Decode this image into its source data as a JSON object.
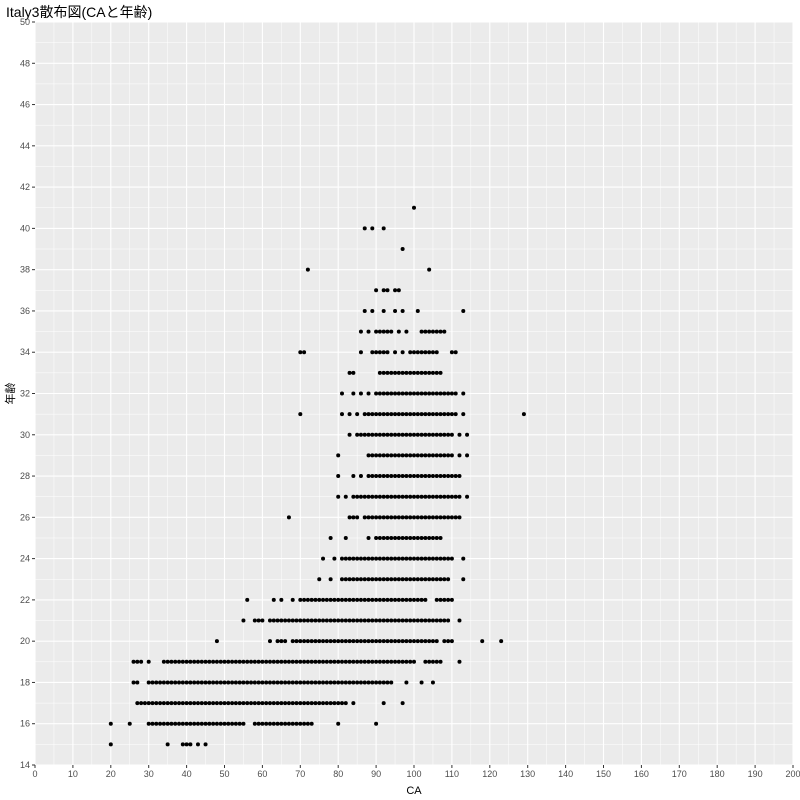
{
  "chart_data": {
    "type": "scatter",
    "title": "Italy3散布図(CAと年齢)",
    "xlabel": "CA",
    "ylabel": "年齢",
    "xlim": [
      0,
      200
    ],
    "ylim": [
      14,
      50
    ],
    "x_ticks": [
      0,
      10,
      20,
      30,
      40,
      50,
      60,
      70,
      80,
      90,
      100,
      110,
      120,
      130,
      140,
      150,
      160,
      170,
      180,
      190,
      200
    ],
    "y_ticks": [
      14,
      16,
      18,
      20,
      22,
      24,
      26,
      28,
      30,
      32,
      34,
      36,
      38,
      40,
      42,
      44,
      46,
      48,
      50
    ],
    "grid": true,
    "panel_background": "#ebebeb",
    "grid_color": "#ffffff",
    "point_color": "#000000",
    "row_segments": [
      {
        "y": 15,
        "points": [
          20,
          35,
          39,
          40,
          41,
          43,
          45
        ]
      },
      {
        "y": 16,
        "points": [
          20,
          25,
          80,
          90
        ],
        "runs": [
          [
            30,
            55
          ],
          [
            58,
            73
          ]
        ]
      },
      {
        "y": 17,
        "points": [
          84,
          92,
          97
        ],
        "runs": [
          [
            27,
            82
          ]
        ]
      },
      {
        "y": 18,
        "points": [
          98,
          102,
          105
        ],
        "runs": [
          [
            26,
            27
          ],
          [
            30,
            94
          ]
        ]
      },
      {
        "y": 19,
        "points": [
          26,
          27,
          28,
          30,
          112
        ],
        "runs": [
          [
            34,
            100
          ],
          [
            103,
            107
          ]
        ]
      },
      {
        "y": 20,
        "points": [
          48,
          62,
          73,
          118,
          123
        ],
        "runs": [
          [
            64,
            66
          ],
          [
            68,
            106
          ],
          [
            108,
            110
          ]
        ]
      },
      {
        "y": 21,
        "points": [
          55,
          112
        ],
        "runs": [
          [
            58,
            60
          ],
          [
            62,
            109
          ]
        ]
      },
      {
        "y": 22,
        "points": [
          56,
          63,
          65,
          68,
          70
        ],
        "runs": [
          [
            70,
            103
          ],
          [
            106,
            110
          ]
        ]
      },
      {
        "y": 23,
        "points": [
          75,
          78,
          113
        ],
        "runs": [
          [
            81,
            109
          ]
        ]
      },
      {
        "y": 24,
        "points": [
          76,
          79,
          113
        ],
        "runs": [
          [
            81,
            110
          ]
        ]
      },
      {
        "y": 25,
        "points": [
          78,
          82,
          88
        ],
        "runs": [
          [
            90,
            107
          ]
        ]
      },
      {
        "y": 26,
        "points": [
          67,
          83,
          84,
          85,
          87
        ],
        "runs": [
          [
            88,
            112
          ]
        ]
      },
      {
        "y": 27,
        "points": [
          80,
          82,
          84,
          85,
          114
        ],
        "runs": [
          [
            86,
            112
          ]
        ]
      },
      {
        "y": 28,
        "points": [
          80,
          84,
          86
        ],
        "runs": [
          [
            88,
            112
          ]
        ]
      },
      {
        "y": 29,
        "points": [
          80,
          112,
          114
        ],
        "runs": [
          [
            88,
            110
          ]
        ]
      },
      {
        "y": 30,
        "points": [
          83,
          112,
          114
        ],
        "runs": [
          [
            85,
            110
          ]
        ]
      },
      {
        "y": 31,
        "points": [
          70,
          81,
          83,
          85,
          113,
          129
        ],
        "runs": [
          [
            87,
            111
          ]
        ]
      },
      {
        "y": 32,
        "points": [
          81,
          84,
          86,
          88,
          113
        ],
        "runs": [
          [
            90,
            111
          ]
        ]
      },
      {
        "y": 33,
        "points": [
          83,
          84
        ],
        "runs": [
          [
            91,
            107
          ]
        ]
      },
      {
        "y": 34,
        "points": [
          70,
          71,
          86,
          95,
          97,
          101
        ],
        "runs": [
          [
            89,
            93
          ],
          [
            99,
            106
          ],
          [
            110,
            111
          ]
        ]
      },
      {
        "y": 35,
        "points": [
          86,
          88,
          90,
          96,
          98
        ],
        "runs": [
          [
            91,
            94
          ],
          [
            102,
            108
          ]
        ]
      },
      {
        "y": 36,
        "points": [
          87,
          89,
          92,
          95,
          97,
          101,
          113
        ]
      },
      {
        "y": 37,
        "points": [
          90,
          92,
          93,
          95,
          96
        ]
      },
      {
        "y": 38,
        "points": [
          72,
          104
        ]
      },
      {
        "y": 39,
        "points": [
          97
        ]
      },
      {
        "y": 40,
        "points": [
          87,
          89,
          92
        ]
      },
      {
        "y": 41,
        "points": [
          100
        ]
      }
    ]
  }
}
